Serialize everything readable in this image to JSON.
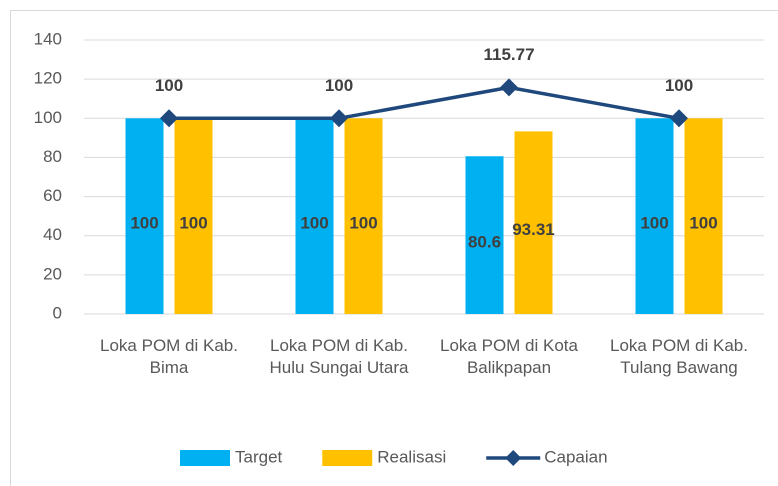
{
  "chart_data": {
    "type": "bar",
    "categories": [
      "Loka POM di Kab. Bima",
      "Loka POM di Kab. Hulu Sungai Utara",
      "Loka POM di Kota Balikpapan",
      "Loka POM di Kab. Tulang Bawang"
    ],
    "series": [
      {
        "name": "Target",
        "type": "bar",
        "color": "#00b0f0",
        "values": [
          100,
          100,
          80.6,
          100
        ]
      },
      {
        "name": "Realisasi",
        "type": "bar",
        "color": "#ffc000",
        "values": [
          100,
          100,
          93.31,
          100
        ]
      },
      {
        "name": "Capaian",
        "type": "line",
        "color": "#1f497d",
        "values": [
          100,
          100,
          115.77,
          100
        ]
      }
    ],
    "ylim": [
      0,
      140
    ],
    "yticks": [
      0,
      20,
      40,
      60,
      80,
      100,
      120,
      140
    ],
    "grid": true,
    "legend": "bottom"
  }
}
